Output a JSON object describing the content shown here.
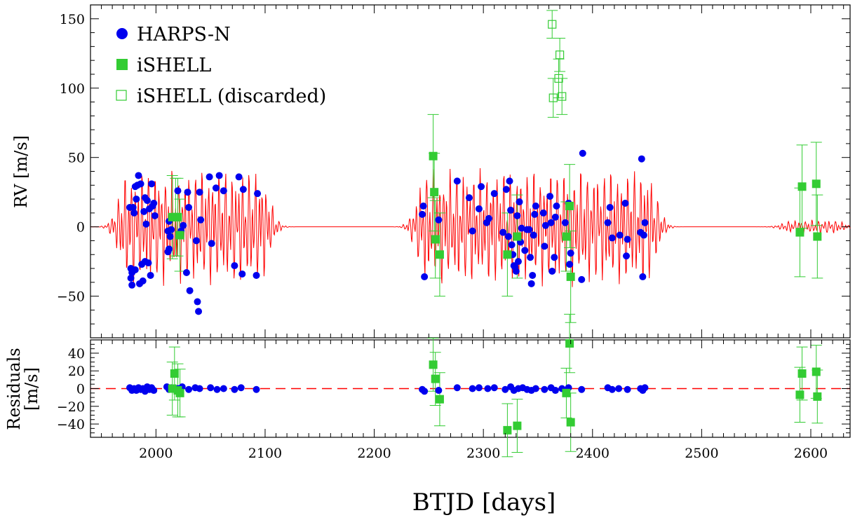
{
  "chart_data": {
    "type": "scatter",
    "xlabel": "BTJD [days]",
    "x_range": [
      1940,
      2636
    ],
    "x_ticks": [
      2000,
      2100,
      2200,
      2300,
      2400,
      2500,
      2600
    ],
    "grid": false,
    "legend": {
      "position": "top-left",
      "entries": [
        {
          "label": "HARPS-N",
          "marker": "filled-circle",
          "color": "#0000ee"
        },
        {
          "label": "iSHELL",
          "marker": "filled-square",
          "color": "#33cc33"
        },
        {
          "label": "iSHELL (discarded)",
          "marker": "open-square",
          "color": "#33cc33"
        }
      ]
    },
    "colors": {
      "harps": "#0000ee",
      "ishell": "#33cc33",
      "model": "#ff0000"
    },
    "panels": [
      {
        "id": "rv",
        "ylabel": "RV [m/s]",
        "y_range": [
          -80,
          160
        ],
        "y_ticks": [
          -50,
          0,
          50,
          100,
          150
        ],
        "series": [
          {
            "name": "HARPS-N",
            "points": [
              [
                1976,
                14
              ],
              [
                1977,
                -30
              ],
              [
                1977,
                -37
              ],
              [
                1978,
                -42
              ],
              [
                1978,
                -33
              ],
              [
                1979,
                14
              ],
              [
                1980,
                10
              ],
              [
                1981,
                -31
              ],
              [
                1981,
                29
              ],
              [
                1982,
                20
              ],
              [
                1983,
                30
              ],
              [
                1984,
                37
              ],
              [
                1985,
                -41
              ],
              [
                1986,
                31
              ],
              [
                1987,
                -27
              ],
              [
                1988,
                -39
              ],
              [
                1989,
                11
              ],
              [
                1990,
                21
              ],
              [
                1990,
                -25
              ],
              [
                1991,
                2
              ],
              [
                1992,
                19
              ],
              [
                1993,
                -26
              ],
              [
                1994,
                13
              ],
              [
                1995,
                -35
              ],
              [
                1996,
                31
              ],
              [
                1997,
                15
              ],
              [
                1998,
                17
              ],
              [
                1999,
                8
              ],
              [
                2011,
                -3
              ],
              [
                2011,
                -18
              ],
              [
                2012,
                4
              ],
              [
                2012,
                -16
              ],
              [
                2013,
                -7
              ],
              [
                2014,
                -2
              ],
              [
                2020,
                26
              ],
              [
                2022,
                -5
              ],
              [
                2023,
                -3
              ],
              [
                2025,
                1
              ],
              [
                2028,
                -33
              ],
              [
                2029,
                25
              ],
              [
                2030,
                14
              ],
              [
                2031,
                -46
              ],
              [
                2037,
                -10
              ],
              [
                2038,
                -54
              ],
              [
                2039,
                -61
              ],
              [
                2040,
                25
              ],
              [
                2041,
                5
              ],
              [
                2049,
                36
              ],
              [
                2051,
                -12
              ],
              [
                2055,
                28
              ],
              [
                2058,
                37
              ],
              [
                2062,
                26
              ],
              [
                2072,
                -28
              ],
              [
                2076,
                36
              ],
              [
                2079,
                -34
              ],
              [
                2080,
                27
              ],
              [
                2092,
                -35
              ],
              [
                2093,
                24
              ],
              [
                2244,
                9
              ],
              [
                2245,
                15
              ],
              [
                2246,
                -36
              ],
              [
                2259,
                5
              ],
              [
                2276,
                33
              ],
              [
                2287,
                21
              ],
              [
                2290,
                -3
              ],
              [
                2296,
                13
              ],
              [
                2298,
                29
              ],
              [
                2303,
                3
              ],
              [
                2305,
                6
              ],
              [
                2310,
                24
              ],
              [
                2318,
                -4
              ],
              [
                2321,
                27
              ],
              [
                2323,
                -7
              ],
              [
                2324,
                33
              ],
              [
                2325,
                12
              ],
              [
                2326,
                -13
              ],
              [
                2327,
                -20
              ],
              [
                2328,
                -28
              ],
              [
                2329,
                -29
              ],
              [
                2330,
                -32
              ],
              [
                2331,
                8
              ],
              [
                2332,
                -25
              ],
              [
                2333,
                18
              ],
              [
                2334,
                -11
              ],
              [
                2335,
                -1
              ],
              [
                2338,
                -17
              ],
              [
                2340,
                -2
              ],
              [
                2342,
                -2
              ],
              [
                2343,
                -22
              ],
              [
                2344,
                -41
              ],
              [
                2345,
                -35
              ],
              [
                2346,
                -6
              ],
              [
                2347,
                9
              ],
              [
                2348,
                15
              ],
              [
                2355,
                10
              ],
              [
                2356,
                -14
              ],
              [
                2357,
                1
              ],
              [
                2361,
                22
              ],
              [
                2362,
                3
              ],
              [
                2363,
                -32
              ],
              [
                2365,
                -22
              ],
              [
                2366,
                7
              ],
              [
                2367,
                15
              ],
              [
                2375,
                3
              ],
              [
                2378,
                17
              ],
              [
                2379,
                -27
              ],
              [
                2380,
                -19
              ],
              [
                2390,
                -38
              ],
              [
                2391,
                53
              ],
              [
                2414,
                3
              ],
              [
                2416,
                14
              ],
              [
                2418,
                -8
              ],
              [
                2425,
                -6
              ],
              [
                2430,
                17
              ],
              [
                2431,
                -21
              ],
              [
                2432,
                -9
              ],
              [
                2444,
                -4
              ],
              [
                2445,
                49
              ],
              [
                2446,
                -36
              ],
              [
                2447,
                -6
              ],
              [
                2448,
                3
              ]
            ]
          },
          {
            "name": "iSHELL",
            "points": [
              [
                2015,
                7,
                30
              ],
              [
                2018,
                7,
                28
              ],
              [
                2020,
                7,
                28
              ],
              [
                2022,
                -6,
                26
              ],
              [
                2254,
                51,
                30
              ],
              [
                2255,
                25,
                28
              ],
              [
                2256,
                -9,
                28
              ],
              [
                2260,
                -20,
                30
              ],
              [
                2322,
                -20,
                30
              ],
              [
                2331,
                -7,
                30
              ],
              [
                2376,
                -7,
                25
              ],
              [
                2379,
                15,
                30
              ],
              [
                2380,
                -36,
                33
              ],
              [
                2590,
                -4,
                32
              ],
              [
                2592,
                29,
                30
              ],
              [
                2605,
                31,
                30
              ],
              [
                2606,
                -7,
                30
              ]
            ]
          },
          {
            "name": "iSHELL (discarded)",
            "points": [
              [
                2363,
                146,
                10
              ],
              [
                2364,
                93,
                14
              ],
              [
                2369,
                107,
                14
              ],
              [
                2370,
                124,
                12
              ],
              [
                2372,
                94,
                13
              ]
            ]
          }
        ],
        "model": {
          "name": "Model",
          "type": "line",
          "color": "#ff0000"
        }
      },
      {
        "id": "residuals",
        "ylabel": "Residuals [m/s]",
        "y_range": [
          -55,
          55
        ],
        "y_ticks": [
          -40,
          -20,
          0,
          20,
          40
        ],
        "zero_line": {
          "style": "dashed",
          "color": "#ff0000",
          "y": 0
        },
        "series": [
          {
            "name": "HARPS-N",
            "points": [
              [
                1976,
                1
              ],
              [
                1978,
                -2
              ],
              [
                1980,
                0
              ],
              [
                1982,
                -2
              ],
              [
                1984,
                1
              ],
              [
                1986,
                -1
              ],
              [
                1988,
                0
              ],
              [
                1990,
                -3
              ],
              [
                1992,
                2
              ],
              [
                1994,
                -1
              ],
              [
                1996,
                1
              ],
              [
                1998,
                -2
              ],
              [
                2010,
                2
              ],
              [
                2012,
                -1
              ],
              [
                2014,
                1
              ],
              [
                2020,
                0
              ],
              [
                2024,
                2
              ],
              [
                2030,
                -1
              ],
              [
                2036,
                1
              ],
              [
                2040,
                0
              ],
              [
                2050,
                1
              ],
              [
                2056,
                -1
              ],
              [
                2062,
                0
              ],
              [
                2072,
                -1
              ],
              [
                2078,
                1
              ],
              [
                2092,
                -1
              ],
              [
                2244,
                -1
              ],
              [
                2246,
                -3
              ],
              [
                2259,
                -2
              ],
              [
                2276,
                1
              ],
              [
                2290,
                0
              ],
              [
                2296,
                1
              ],
              [
                2304,
                0
              ],
              [
                2310,
                1
              ],
              [
                2320,
                -1
              ],
              [
                2325,
                2
              ],
              [
                2328,
                -2
              ],
              [
                2332,
                0
              ],
              [
                2336,
                1
              ],
              [
                2340,
                -1
              ],
              [
                2344,
                -2
              ],
              [
                2348,
                0
              ],
              [
                2356,
                -1
              ],
              [
                2362,
                1
              ],
              [
                2366,
                -2
              ],
              [
                2372,
                0
              ],
              [
                2378,
                1
              ],
              [
                2390,
                -1
              ],
              [
                2414,
                1
              ],
              [
                2418,
                -1
              ],
              [
                2424,
                0
              ],
              [
                2432,
                -1
              ],
              [
                2444,
                0
              ],
              [
                2446,
                -2
              ],
              [
                2448,
                1
              ]
            ]
          },
          {
            "name": "iSHELL",
            "points": [
              [
                2015,
                0,
                30
              ],
              [
                2017,
                17,
                30
              ],
              [
                2020,
                -2,
                30
              ],
              [
                2022,
                -5,
                27
              ],
              [
                2254,
                27,
                30
              ],
              [
                2256,
                11,
                30
              ],
              [
                2260,
                -12,
                30
              ],
              [
                2322,
                -47,
                30
              ],
              [
                2331,
                -42,
                30
              ],
              [
                2376,
                -5,
                28
              ],
              [
                2379,
                51,
                33
              ],
              [
                2380,
                -38,
                33
              ],
              [
                2590,
                -7,
                31
              ],
              [
                2592,
                17,
                30
              ],
              [
                2605,
                19,
                30
              ],
              [
                2606,
                -9,
                30
              ]
            ]
          }
        ]
      }
    ]
  }
}
